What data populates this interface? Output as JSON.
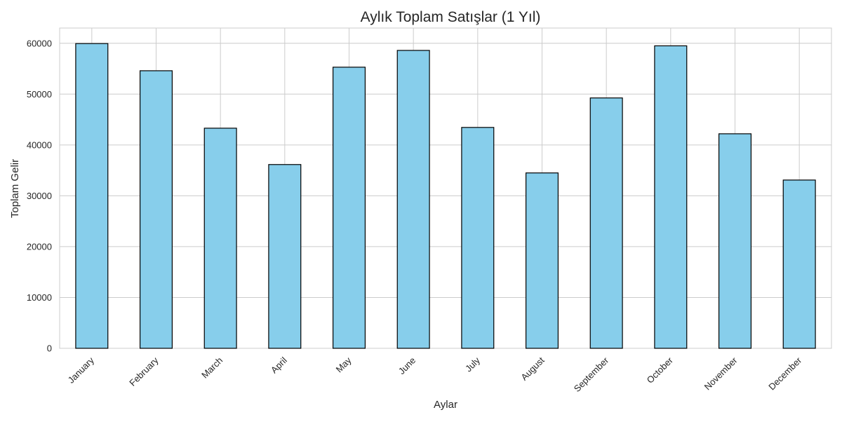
{
  "chart_data": {
    "type": "bar",
    "title": "Aylık Toplam Satışlar (1 Yıl)",
    "xlabel": "Aylar",
    "ylabel": "Toplam Gelir",
    "categories": [
      "January",
      "February",
      "March",
      "April",
      "May",
      "June",
      "July",
      "August",
      "September",
      "October",
      "November",
      "December"
    ],
    "values": [
      59950,
      54600,
      43300,
      36150,
      55300,
      58600,
      43450,
      34500,
      49250,
      59500,
      42200,
      33100
    ],
    "ylim": [
      0,
      63000
    ],
    "yticks": [
      0,
      10000,
      20000,
      30000,
      40000,
      50000,
      60000
    ],
    "ytick_labels": [
      "0",
      "10000",
      "20000",
      "30000",
      "40000",
      "50000",
      "60000"
    ],
    "bar_color": "#87ceeb",
    "edge_color": "#000000",
    "grid": true,
    "legend": null
  }
}
